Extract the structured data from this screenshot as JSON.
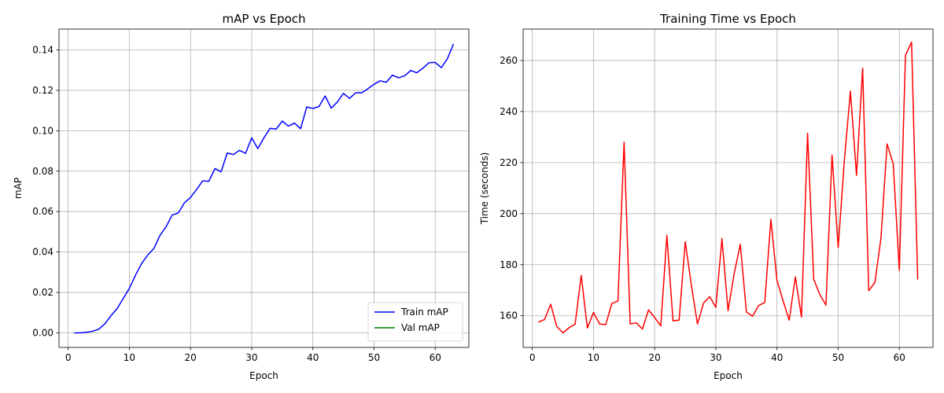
{
  "chart_data": [
    {
      "type": "line",
      "title": "mAP vs Epoch",
      "xlabel": "Epoch",
      "ylabel": "mAP",
      "xlim": [
        -1.5,
        65.5
      ],
      "ylim": [
        -0.0072,
        0.1503
      ],
      "xticks": [
        0,
        10,
        20,
        30,
        40,
        50,
        60
      ],
      "yticks": [
        0.0,
        0.02,
        0.04,
        0.06,
        0.08,
        0.1,
        0.12,
        0.14
      ],
      "ytick_labels": [
        "0.00",
        "0.02",
        "0.04",
        "0.06",
        "0.08",
        "0.10",
        "0.12",
        "0.14"
      ],
      "grid": true,
      "legend": "lower-right",
      "series": [
        {
          "name": "Train mAP",
          "color": "#0000ff",
          "x": [
            1,
            2,
            3,
            4,
            5,
            6,
            7,
            8,
            9,
            10,
            11,
            12,
            13,
            14,
            15,
            16,
            17,
            18,
            19,
            20,
            21,
            22,
            23,
            24,
            25,
            26,
            27,
            28,
            29,
            30,
            31,
            32,
            33,
            34,
            35,
            36,
            37,
            38,
            39,
            40,
            41,
            42,
            43,
            44,
            45,
            46,
            47,
            48,
            49,
            50,
            51,
            52,
            53,
            54,
            55,
            56,
            57,
            58,
            59,
            60,
            61,
            62,
            63
          ],
          "y": [
            0.0,
            0.0,
            0.0003,
            0.0008,
            0.0018,
            0.0045,
            0.0085,
            0.012,
            0.017,
            0.022,
            0.0285,
            0.0343,
            0.0385,
            0.0417,
            0.0482,
            0.0525,
            0.0583,
            0.0593,
            0.0643,
            0.067,
            0.071,
            0.0752,
            0.075,
            0.0813,
            0.0797,
            0.089,
            0.0882,
            0.0903,
            0.0888,
            0.0965,
            0.0912,
            0.0965,
            0.1012,
            0.1008,
            0.1048,
            0.1023,
            0.1038,
            0.101,
            0.1118,
            0.111,
            0.112,
            0.1172,
            0.1112,
            0.1142,
            0.1185,
            0.116,
            0.1188,
            0.1188,
            0.1208,
            0.123,
            0.1247,
            0.124,
            0.1275,
            0.1262,
            0.1272,
            0.1298,
            0.1287,
            0.131,
            0.1337,
            0.1338,
            0.1312,
            0.1357,
            0.143
          ]
        },
        {
          "name": "Val mAP",
          "color": "#008000",
          "x": [],
          "y": []
        }
      ]
    },
    {
      "type": "line",
      "title": "Training Time vs Epoch",
      "xlabel": "Epoch",
      "ylabel": "Time (seconds)",
      "xlim": [
        -1.5,
        65.5
      ],
      "ylim": [
        147.6,
        272.3
      ],
      "xticks": [
        0,
        10,
        20,
        30,
        40,
        50,
        60
      ],
      "yticks": [
        160,
        180,
        200,
        220,
        240,
        260
      ],
      "ytick_labels": [
        "160",
        "180",
        "200",
        "220",
        "240",
        "260"
      ],
      "grid": true,
      "series": [
        {
          "color": "#ff0000",
          "x": [
            1,
            2,
            3,
            4,
            5,
            6,
            7,
            8,
            9,
            10,
            11,
            12,
            13,
            14,
            15,
            16,
            17,
            18,
            19,
            20,
            21,
            22,
            23,
            24,
            25,
            26,
            27,
            28,
            29,
            30,
            31,
            32,
            33,
            34,
            35,
            36,
            37,
            38,
            39,
            40,
            41,
            42,
            43,
            44,
            45,
            46,
            47,
            48,
            49,
            50,
            51,
            52,
            53,
            54,
            55,
            56,
            57,
            58,
            59,
            60,
            61,
            62,
            63
          ],
          "y": [
            157.5,
            158.5,
            164.5,
            155.8,
            153.3,
            155.3,
            156.7,
            175.8,
            155.2,
            161.3,
            156.8,
            156.5,
            164.8,
            165.8,
            228.0,
            156.8,
            157.2,
            154.8,
            162.3,
            159.3,
            156.0,
            191.5,
            158.0,
            158.3,
            189.0,
            172.0,
            156.8,
            165.0,
            167.5,
            163.3,
            190.2,
            162.0,
            176.5,
            188.0,
            161.5,
            159.8,
            164.0,
            165.2,
            197.8,
            173.8,
            165.8,
            158.3,
            175.2,
            159.5,
            231.5,
            174.3,
            168.3,
            164.2,
            223.0,
            186.7,
            220.5,
            248.0,
            215.0,
            257.0,
            169.8,
            173.0,
            190.5,
            227.3,
            219.5,
            177.8,
            262.0,
            267.2,
            174.2
          ]
        }
      ]
    }
  ]
}
